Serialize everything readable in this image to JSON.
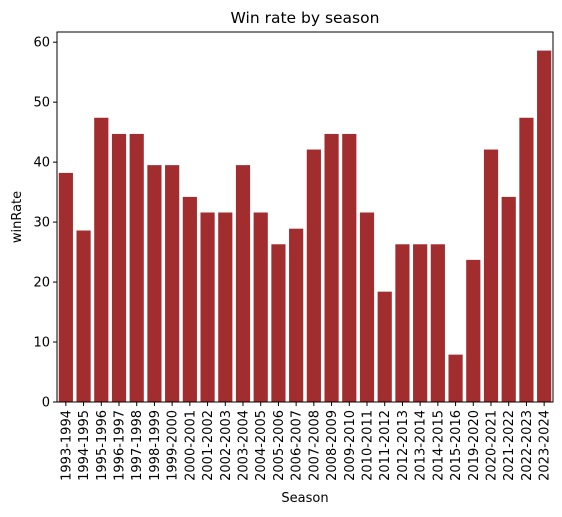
{
  "chart_data": {
    "type": "bar",
    "title": "Win rate by season",
    "xlabel": "Season",
    "ylabel": "winRate",
    "ylim": [
      0,
      61.7
    ],
    "yticks": [
      0,
      10,
      20,
      30,
      40,
      50,
      60
    ],
    "bar_color": "#a22d2f",
    "grid": false,
    "legend": "none",
    "categories": [
      "1993-1994",
      "1994-1995",
      "1995-1996",
      "1996-1997",
      "1997-1998",
      "1998-1999",
      "1999-2000",
      "2000-2001",
      "2001-2002",
      "2002-2003",
      "2003-2004",
      "2004-2005",
      "2005-2006",
      "2006-2007",
      "2007-2008",
      "2008-2009",
      "2009-2010",
      "2010-2011",
      "2011-2012",
      "2012-2013",
      "2013-2014",
      "2014-2015",
      "2015-2016",
      "2019-2020",
      "2020-2021",
      "2021-2022",
      "2022-2023",
      "2023-2024"
    ],
    "values": [
      38.2,
      28.6,
      47.4,
      44.7,
      44.7,
      39.5,
      39.5,
      34.2,
      31.6,
      31.6,
      39.5,
      31.6,
      26.3,
      28.9,
      42.1,
      44.7,
      44.7,
      31.6,
      18.4,
      26.3,
      26.3,
      26.3,
      7.9,
      23.7,
      42.1,
      34.2,
      47.4,
      58.6
    ]
  }
}
